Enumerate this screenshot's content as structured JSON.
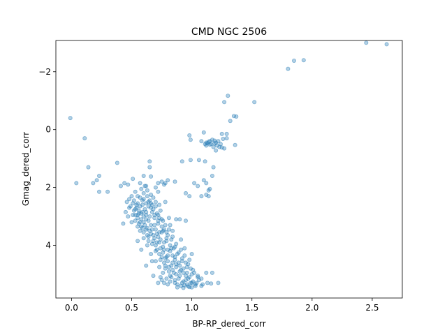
{
  "chart_data": {
    "type": "scatter",
    "title": "CMD NGC 2506",
    "xlabel": "BP-RP_dered_corr",
    "ylabel": "Gmag_dered_corr",
    "xlim": [
      -0.13,
      2.75
    ],
    "ylim": [
      5.82,
      -3.08
    ],
    "y_inverted": true,
    "grid": false,
    "xticks": [
      0.0,
      0.5,
      1.0,
      1.5,
      2.0,
      2.5
    ],
    "xtick_labels": [
      "0.0",
      "0.5",
      "1.0",
      "1.5",
      "2.0",
      "2.5"
    ],
    "yticks": [
      -2,
      0,
      2,
      4
    ],
    "ytick_labels": [
      "−2",
      "0",
      "2",
      "4"
    ],
    "marker_color": "#1f77b4",
    "marker_alpha": 0.35,
    "series": [
      {
        "points": [
          [
            2.45,
            -3.0
          ],
          [
            2.62,
            -2.95
          ],
          [
            1.93,
            -2.4
          ],
          [
            1.85,
            -2.38
          ],
          [
            1.8,
            -2.1
          ],
          [
            1.3,
            -1.17
          ],
          [
            1.27,
            -0.95
          ],
          [
            1.52,
            -0.95
          ],
          [
            1.35,
            -0.47
          ],
          [
            1.32,
            -0.3
          ],
          [
            1.37,
            -0.45
          ],
          [
            1.1,
            0.1
          ],
          [
            1.25,
            0.15
          ],
          [
            1.29,
            0.15
          ],
          [
            1.29,
            0.3
          ],
          [
            0.99,
            0.35
          ],
          [
            0.98,
            0.2
          ],
          [
            1.08,
            0.4
          ],
          [
            1.12,
            0.45
          ],
          [
            1.15,
            0.4
          ],
          [
            1.17,
            0.35
          ],
          [
            1.14,
            0.42
          ],
          [
            1.12,
            0.55
          ],
          [
            1.16,
            0.5
          ],
          [
            1.18,
            0.6
          ],
          [
            1.2,
            0.45
          ],
          [
            1.22,
            0.4
          ],
          [
            1.24,
            0.5
          ],
          [
            1.26,
            0.32
          ],
          [
            1.27,
            0.65
          ],
          [
            1.36,
            0.53
          ],
          [
            1.23,
            0.6
          ],
          [
            1.19,
            0.48
          ],
          [
            1.21,
            0.55
          ],
          [
            1.11,
            0.5
          ],
          [
            1.2,
            0.72
          ],
          [
            1.15,
            0.52
          ],
          [
            1.13,
            0.47
          ],
          [
            1.19,
            0.38
          ],
          [
            1.25,
            0.62
          ],
          [
            -0.01,
            -0.4
          ],
          [
            0.11,
            0.3
          ],
          [
            0.14,
            1.3
          ],
          [
            0.04,
            1.85
          ],
          [
            0.21,
            1.75
          ],
          [
            0.23,
            2.15
          ],
          [
            0.3,
            2.15
          ],
          [
            0.38,
            1.15
          ],
          [
            0.41,
            1.95
          ],
          [
            0.44,
            1.85
          ],
          [
            0.47,
            1.9
          ],
          [
            0.51,
            1.7
          ],
          [
            0.53,
            2.15
          ],
          [
            0.55,
            2.3
          ],
          [
            0.57,
            1.85
          ],
          [
            0.6,
            1.6
          ],
          [
            0.62,
            1.95
          ],
          [
            0.65,
            1.3
          ],
          [
            0.65,
            1.1
          ],
          [
            0.66,
            1.62
          ],
          [
            0.72,
            1.85
          ],
          [
            0.75,
            1.8
          ],
          [
            0.77,
            1.9
          ],
          [
            0.78,
            1.85
          ],
          [
            0.8,
            1.75
          ],
          [
            0.86,
            1.8
          ],
          [
            0.92,
            1.1
          ],
          [
            0.99,
            1.05
          ],
          [
            0.95,
            2.2
          ],
          [
            1.02,
            1.85
          ],
          [
            1.05,
            1.95
          ],
          [
            1.1,
            1.75
          ],
          [
            1.12,
            1.85
          ],
          [
            1.15,
            2.05
          ],
          [
            1.17,
            1.6
          ],
          [
            1.08,
            2.3
          ],
          [
            1.12,
            2.25
          ],
          [
            1.14,
            2.3
          ],
          [
            0.98,
            2.3
          ],
          [
            1.11,
            1.1
          ],
          [
            1.06,
            1.05
          ],
          [
            1.18,
            1.3
          ],
          [
            1.14,
            2.1
          ],
          [
            0.78,
            2.5
          ],
          [
            0.23,
            1.6
          ],
          [
            0.18,
            1.85
          ],
          [
            1.12,
            4.95
          ],
          [
            1.17,
            4.95
          ],
          [
            1.22,
            5.3
          ],
          [
            0.9,
            3.1
          ],
          [
            0.95,
            3.15
          ],
          [
            0.5,
            2.3
          ],
          [
            0.52,
            2.45
          ],
          [
            0.55,
            2.55
          ],
          [
            0.57,
            2.35
          ],
          [
            0.6,
            2.2
          ],
          [
            0.63,
            2.1
          ],
          [
            0.66,
            2.25
          ],
          [
            0.68,
            2.35
          ],
          [
            0.7,
            2.5
          ],
          [
            0.54,
            2.7
          ],
          [
            0.56,
            2.8
          ],
          [
            0.59,
            2.6
          ],
          [
            0.61,
            2.75
          ],
          [
            0.64,
            2.65
          ],
          [
            0.67,
            2.85
          ],
          [
            0.53,
            2.95
          ],
          [
            0.55,
            3.05
          ],
          [
            0.58,
            2.9
          ],
          [
            0.6,
            3.0
          ],
          [
            0.62,
            3.1
          ],
          [
            0.65,
            3.0
          ],
          [
            0.69,
            3.05
          ],
          [
            0.56,
            3.25
          ],
          [
            0.58,
            3.35
          ],
          [
            0.6,
            3.2
          ],
          [
            0.63,
            3.4
          ],
          [
            0.66,
            3.3
          ],
          [
            0.7,
            3.45
          ],
          [
            0.72,
            3.25
          ],
          [
            0.6,
            3.55
          ],
          [
            0.63,
            3.65
          ],
          [
            0.66,
            3.6
          ],
          [
            0.69,
            3.75
          ],
          [
            0.72,
            3.7
          ],
          [
            0.75,
            3.55
          ],
          [
            0.77,
            3.45
          ],
          [
            0.8,
            3.65
          ],
          [
            0.64,
            3.85
          ],
          [
            0.67,
            3.95
          ],
          [
            0.7,
            4.0
          ],
          [
            0.73,
            3.9
          ],
          [
            0.76,
            4.05
          ],
          [
            0.79,
            3.85
          ],
          [
            0.82,
            4.0
          ],
          [
            0.7,
            4.2
          ],
          [
            0.73,
            4.3
          ],
          [
            0.76,
            4.25
          ],
          [
            0.79,
            4.4
          ],
          [
            0.82,
            4.2
          ],
          [
            0.85,
            4.1
          ],
          [
            0.88,
            4.3
          ],
          [
            0.74,
            4.5
          ],
          [
            0.77,
            4.6
          ],
          [
            0.8,
            4.55
          ],
          [
            0.83,
            4.7
          ],
          [
            0.86,
            4.5
          ],
          [
            0.89,
            4.6
          ],
          [
            0.92,
            4.45
          ],
          [
            0.78,
            4.8
          ],
          [
            0.81,
            4.9
          ],
          [
            0.84,
            4.85
          ],
          [
            0.87,
            5.0
          ],
          [
            0.9,
            4.9
          ],
          [
            0.93,
            4.8
          ],
          [
            0.96,
            4.95
          ],
          [
            0.83,
            5.1
          ],
          [
            0.86,
            5.2
          ],
          [
            0.89,
            5.15
          ],
          [
            0.92,
            5.3
          ],
          [
            0.95,
            5.2
          ],
          [
            0.98,
            5.1
          ],
          [
            1.01,
            5.25
          ],
          [
            0.88,
            5.35
          ],
          [
            0.91,
            5.4
          ],
          [
            0.94,
            5.38
          ],
          [
            0.97,
            5.42
          ],
          [
            1.0,
            5.3
          ],
          [
            1.03,
            5.35
          ],
          [
            1.06,
            5.2
          ],
          [
            0.99,
            4.8
          ],
          [
            1.02,
            4.95
          ],
          [
            1.05,
            5.05
          ],
          [
            1.08,
            5.15
          ],
          [
            0.95,
            4.6
          ],
          [
            0.98,
            4.5
          ],
          [
            0.75,
            5.2
          ],
          [
            0.72,
            5.3
          ],
          [
            0.68,
            5.05
          ],
          [
            0.8,
            5.35
          ],
          [
            0.62,
            4.7
          ],
          [
            0.55,
            3.85
          ],
          [
            0.46,
            2.5
          ],
          [
            0.48,
            2.7
          ],
          [
            0.45,
            2.85
          ],
          [
            0.47,
            3.0
          ],
          [
            0.5,
            3.2
          ],
          [
            0.43,
            3.25
          ],
          [
            0.87,
            3.1
          ],
          [
            0.84,
            3.5
          ],
          [
            0.82,
            3.3
          ],
          [
            0.91,
            3.8
          ],
          [
            0.94,
            4.1
          ],
          [
            1.0,
            4.3
          ],
          [
            0.7,
            2.0
          ],
          [
            0.72,
            2.15
          ],
          [
            0.58,
            2.05
          ],
          [
            0.61,
            1.95
          ],
          [
            0.74,
            2.8
          ],
          [
            0.76,
            3.15
          ],
          [
            0.59,
            2.45
          ],
          [
            0.62,
            2.55
          ],
          [
            0.65,
            2.45
          ],
          [
            0.57,
            2.65
          ],
          [
            0.59,
            2.85
          ],
          [
            0.62,
            2.95
          ],
          [
            0.64,
            3.15
          ],
          [
            0.67,
            3.45
          ],
          [
            0.71,
            3.6
          ],
          [
            0.74,
            3.8
          ],
          [
            0.77,
            4.15
          ],
          [
            0.8,
            4.35
          ],
          [
            0.84,
            4.6
          ],
          [
            0.87,
            4.75
          ],
          [
            0.9,
            5.05
          ],
          [
            0.93,
            5.25
          ],
          [
            0.96,
            5.35
          ],
          [
            0.85,
            4.95
          ],
          [
            0.81,
            4.75
          ],
          [
            0.78,
            4.45
          ],
          [
            0.74,
            4.1
          ],
          [
            0.71,
            3.9
          ],
          [
            0.68,
            3.65
          ],
          [
            0.65,
            3.5
          ],
          [
            0.61,
            3.3
          ],
          [
            0.58,
            3.1
          ],
          [
            0.56,
            2.9
          ],
          [
            0.54,
            2.6
          ],
          [
            0.52,
            2.8
          ],
          [
            0.51,
            2.55
          ],
          [
            0.66,
            2.7
          ],
          [
            0.69,
            2.95
          ],
          [
            0.72,
            3.15
          ],
          [
            0.75,
            3.35
          ],
          [
            0.79,
            3.55
          ],
          [
            0.83,
            3.8
          ],
          [
            0.86,
            4.05
          ],
          [
            0.89,
            4.25
          ],
          [
            0.92,
            4.55
          ],
          [
            0.96,
            4.75
          ],
          [
            1.0,
            5.0
          ],
          [
            1.04,
            5.3
          ],
          [
            1.09,
            5.35
          ],
          [
            1.13,
            5.3
          ],
          [
            1.16,
            5.32
          ],
          [
            0.88,
            5.45
          ],
          [
            0.93,
            5.47
          ],
          [
            0.98,
            5.44
          ],
          [
            0.7,
            4.55
          ],
          [
            0.73,
            4.75
          ],
          [
            0.76,
            4.95
          ],
          [
            0.79,
            5.15
          ],
          [
            0.82,
            5.25
          ],
          [
            0.66,
            4.3
          ],
          [
            0.63,
            4.0
          ],
          [
            0.6,
            3.75
          ],
          [
            0.57,
            3.5
          ],
          [
            0.55,
            3.35
          ],
          [
            0.53,
            3.15
          ],
          [
            0.51,
            2.95
          ],
          [
            0.49,
            2.65
          ],
          [
            0.48,
            2.4
          ],
          [
            0.63,
            2.3
          ],
          [
            0.66,
            2.55
          ],
          [
            0.68,
            2.75
          ],
          [
            0.71,
            2.9
          ],
          [
            0.73,
            3.05
          ],
          [
            0.76,
            3.5
          ],
          [
            0.79,
            3.75
          ],
          [
            0.83,
            4.1
          ],
          [
            0.86,
            4.4
          ],
          [
            0.9,
            4.7
          ],
          [
            0.93,
            4.95
          ],
          [
            0.97,
            5.15
          ],
          [
            1.0,
            5.45
          ],
          [
            0.86,
            5.3
          ],
          [
            0.82,
            5.05
          ],
          [
            0.78,
            4.7
          ],
          [
            0.75,
            4.4
          ],
          [
            0.71,
            4.15
          ],
          [
            0.68,
            3.85
          ],
          [
            0.64,
            3.7
          ],
          [
            0.62,
            3.45
          ],
          [
            0.59,
            3.4
          ],
          [
            0.57,
            3.2
          ],
          [
            0.55,
            2.95
          ],
          [
            0.53,
            2.75
          ],
          [
            0.6,
            2.4
          ],
          [
            0.64,
            2.5
          ],
          [
            0.67,
            2.6
          ],
          [
            0.7,
            2.65
          ],
          [
            0.72,
            2.95
          ],
          [
            0.75,
            3.1
          ],
          [
            0.78,
            3.3
          ],
          [
            0.81,
            3.45
          ],
          [
            0.84,
            3.7
          ],
          [
            0.87,
            3.95
          ],
          [
            0.91,
            4.15
          ],
          [
            0.94,
            4.35
          ],
          [
            0.97,
            4.65
          ],
          [
            1.01,
            4.85
          ],
          [
            1.05,
            5.1
          ],
          [
            1.08,
            5.4
          ],
          [
            0.81,
            3.05
          ],
          [
            0.73,
            2.6
          ],
          [
            0.62,
            2.85
          ],
          [
            0.69,
            3.3
          ],
          [
            0.73,
            3.55
          ],
          [
            0.77,
            3.9
          ],
          [
            0.8,
            4.15
          ],
          [
            0.84,
            4.35
          ],
          [
            0.87,
            4.65
          ],
          [
            0.91,
            4.85
          ],
          [
            0.95,
            5.05
          ],
          [
            0.99,
            5.3
          ],
          [
            1.03,
            5.4
          ],
          [
            0.67,
            4.55
          ],
          [
            0.74,
            5.1
          ],
          [
            0.77,
            5.3
          ],
          [
            0.58,
            4.15
          ]
        ]
      }
    ]
  }
}
